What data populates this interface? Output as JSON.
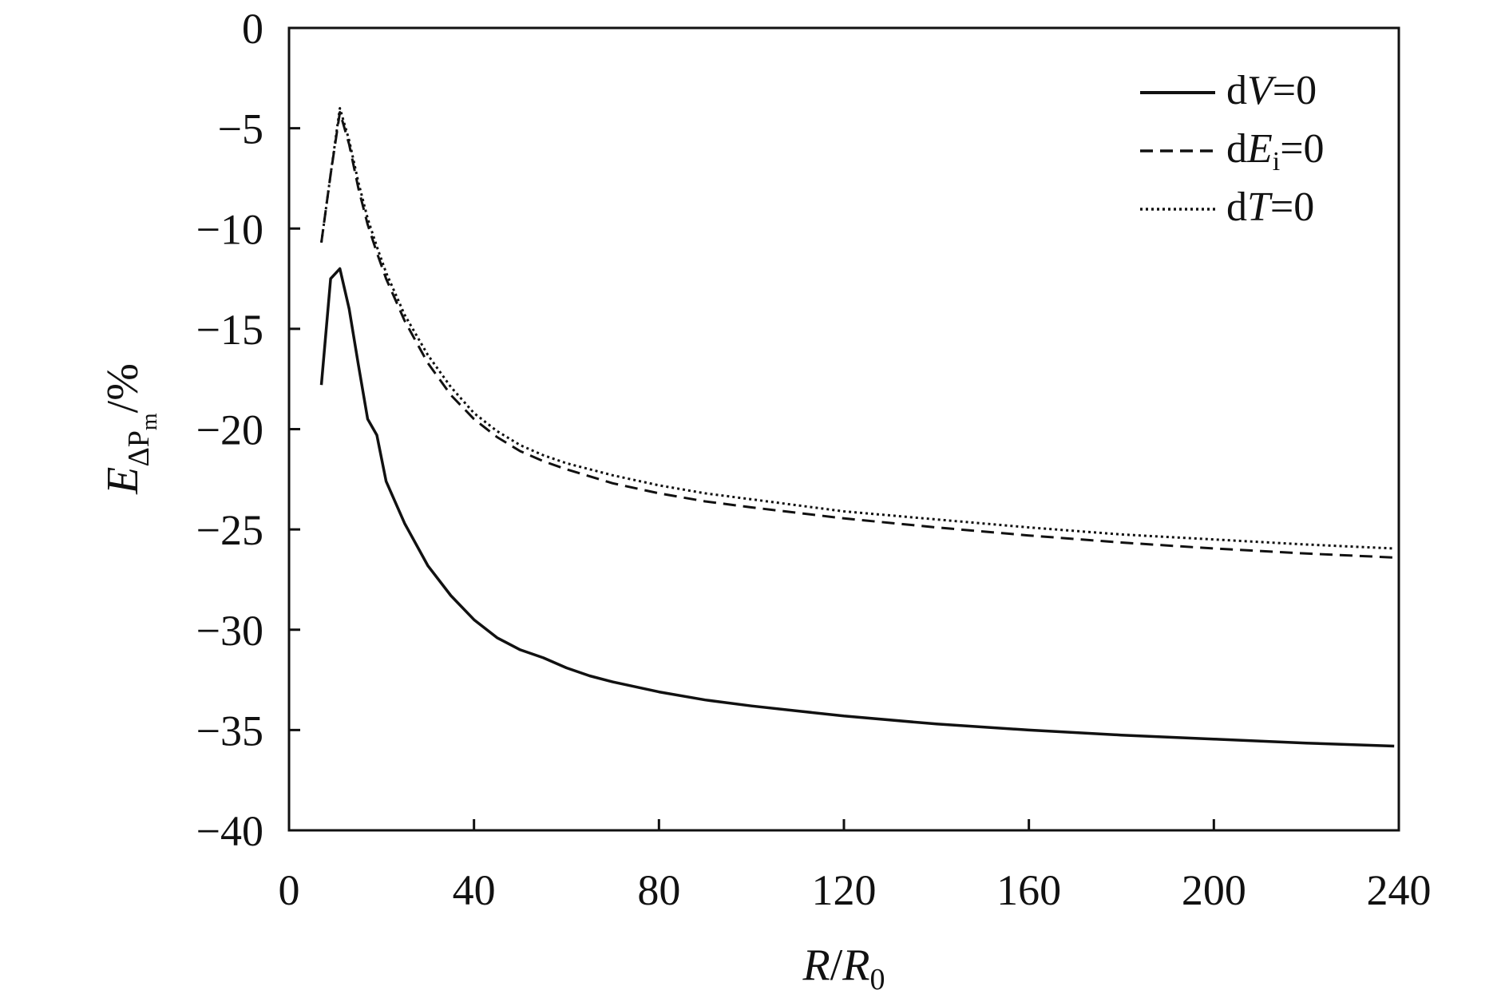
{
  "chart_data": {
    "type": "line",
    "title": "",
    "xlabel": {
      "main": "R",
      "sep": "/",
      "var": "R",
      "sub": "0"
    },
    "ylabel": {
      "main": "E",
      "sub1": "ΔP",
      "sub2": "m",
      "unit": "/%"
    },
    "xlim": [
      0,
      240
    ],
    "ylim": [
      -40,
      0
    ],
    "xticks": [
      0,
      40,
      80,
      120,
      160,
      200,
      240
    ],
    "yticks": [
      0,
      -5,
      -10,
      -15,
      -20,
      -25,
      -30,
      -35,
      -40
    ],
    "xtick_labels": [
      "0",
      "40",
      "80",
      "120",
      "160",
      "200",
      "240"
    ],
    "ytick_labels": [
      "0",
      "−5",
      "−10",
      "−15",
      "−20",
      "−25",
      "−30",
      "−35",
      "−40"
    ],
    "grid": false,
    "legend_position": "top-right",
    "series": [
      {
        "name": "dV=0",
        "legend": {
          "pre": "d",
          "var": "V",
          "sub": "",
          "post": "=0"
        },
        "style": "solid",
        "color": "#111111",
        "x": [
          7,
          9,
          11,
          13,
          15,
          17,
          19,
          21,
          25,
          30,
          35,
          40,
          45,
          50,
          55,
          60,
          65,
          70,
          80,
          90,
          100,
          120,
          140,
          160,
          180,
          200,
          220,
          239
        ],
        "values": [
          -17.8,
          -12.5,
          -12.0,
          -14.0,
          -16.8,
          -19.5,
          -20.3,
          -22.6,
          -24.7,
          -26.8,
          -28.3,
          -29.5,
          -30.4,
          -31.0,
          -31.4,
          -31.9,
          -32.3,
          -32.6,
          -33.1,
          -33.5,
          -33.8,
          -34.3,
          -34.7,
          -35.0,
          -35.25,
          -35.45,
          -35.65,
          -35.8
        ]
      },
      {
        "name": "dEi=0",
        "legend": {
          "pre": "d",
          "var": "E",
          "sub": "i",
          "post": "=0"
        },
        "style": "dashed",
        "color": "#111111",
        "x": [
          7,
          9,
          11,
          13,
          15,
          17,
          19,
          21,
          25,
          30,
          35,
          40,
          45,
          50,
          55,
          60,
          70,
          80,
          90,
          100,
          120,
          140,
          160,
          180,
          200,
          220,
          239
        ],
        "values": [
          -10.7,
          -7.3,
          -4.2,
          -5.8,
          -8.0,
          -9.8,
          -11.2,
          -12.5,
          -14.6,
          -16.7,
          -18.3,
          -19.5,
          -20.4,
          -21.1,
          -21.6,
          -22.0,
          -22.7,
          -23.2,
          -23.6,
          -23.9,
          -24.45,
          -24.9,
          -25.3,
          -25.65,
          -25.95,
          -26.2,
          -26.4
        ]
      },
      {
        "name": "dT=0",
        "legend": {
          "pre": "d",
          "var": "T",
          "sub": "",
          "post": "=0"
        },
        "style": "dotted",
        "color": "#111111",
        "x": [
          7,
          9,
          11,
          13,
          15,
          17,
          19,
          21,
          25,
          30,
          35,
          40,
          45,
          50,
          55,
          60,
          70,
          80,
          90,
          100,
          120,
          140,
          160,
          180,
          200,
          220,
          239
        ],
        "values": [
          -10.7,
          -7.3,
          -4.0,
          -5.6,
          -7.7,
          -9.5,
          -10.9,
          -12.2,
          -14.3,
          -16.3,
          -17.9,
          -19.2,
          -20.1,
          -20.8,
          -21.3,
          -21.7,
          -22.3,
          -22.8,
          -23.2,
          -23.5,
          -24.1,
          -24.5,
          -24.9,
          -25.25,
          -25.5,
          -25.75,
          -25.95
        ]
      }
    ]
  }
}
